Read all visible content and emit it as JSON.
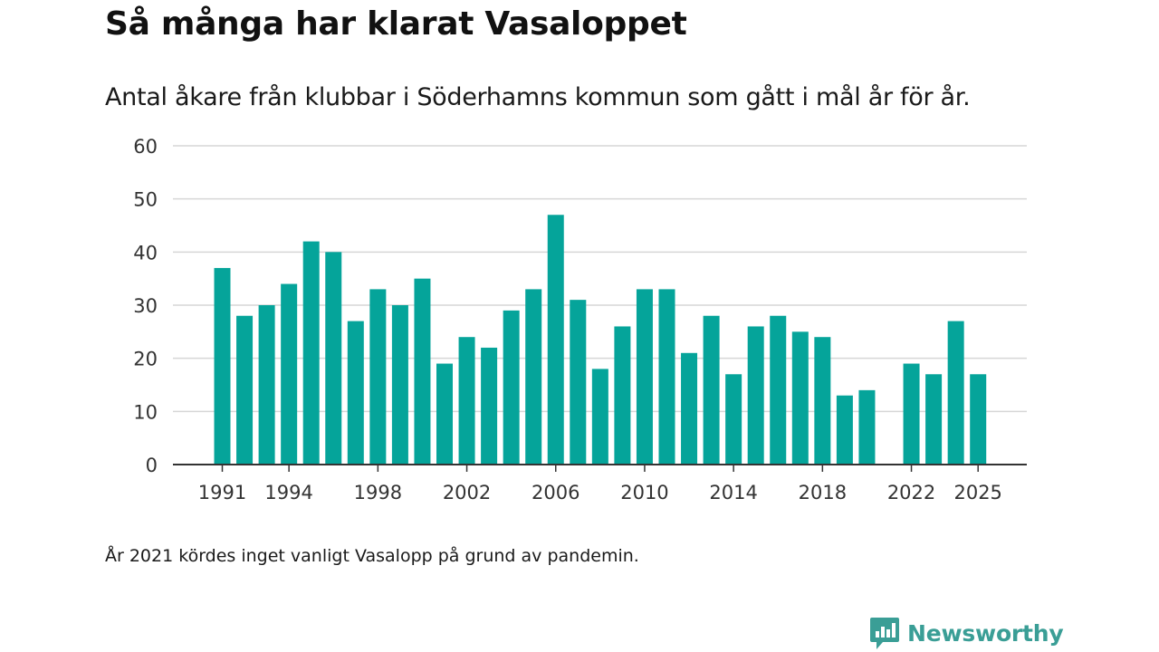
{
  "header": {
    "title": "Så många har klarat Vasaloppet",
    "subtitle": "Antal åkare från klubbar i Söderhamns kommun som gått i mål år för år."
  },
  "footer": {
    "note": "År 2021 kördes inget vanligt Vasalopp på grund av pandemin.",
    "brand": "Newsworthy"
  },
  "colors": {
    "bar": "#05a49a",
    "grid": "#d6d6d6",
    "axis": "#333333",
    "brand": "#3a9e96"
  },
  "chart_data": {
    "type": "bar",
    "title": "Så många har klarat Vasaloppet",
    "xlabel": "",
    "ylabel": "",
    "ylim": [
      0,
      60
    ],
    "yticks": [
      0,
      10,
      20,
      30,
      40,
      50,
      60
    ],
    "xticks": [
      1991,
      1994,
      1998,
      2002,
      2006,
      2010,
      2014,
      2018,
      2022,
      2025
    ],
    "grid": true,
    "categories": [
      1991,
      1992,
      1993,
      1994,
      1995,
      1996,
      1997,
      1998,
      1999,
      2000,
      2001,
      2002,
      2003,
      2004,
      2005,
      2006,
      2007,
      2008,
      2009,
      2010,
      2011,
      2012,
      2013,
      2014,
      2015,
      2016,
      2017,
      2018,
      2019,
      2020,
      2021,
      2022,
      2023,
      2024,
      2025
    ],
    "values": [
      37,
      28,
      30,
      34,
      42,
      40,
      27,
      33,
      30,
      35,
      19,
      24,
      22,
      29,
      33,
      47,
      31,
      18,
      26,
      33,
      33,
      21,
      28,
      17,
      26,
      28,
      25,
      24,
      13,
      14,
      null,
      19,
      17,
      27,
      17
    ]
  }
}
